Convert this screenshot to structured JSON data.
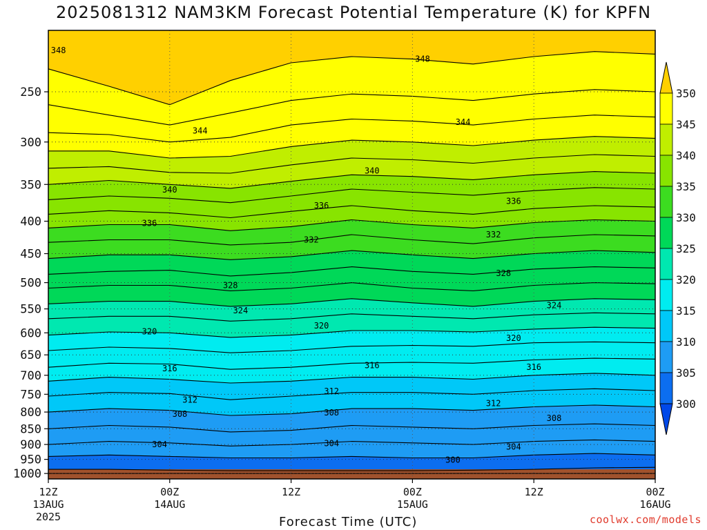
{
  "title": "2025081312 NAM3KM Forecast Potential Temperature (K) for KPFN",
  "credit": "coolwx.com/models",
  "chart_data": {
    "type": "contour",
    "title": "2025081312 NAM3KM Forecast Potential Temperature (K) for KPFN",
    "xlabel": "Forecast Time (UTC)",
    "ylabel": "",
    "x_ticks": [
      {
        "hour": 0,
        "labels": [
          "12Z",
          "13AUG",
          "2025"
        ]
      },
      {
        "hour": 12,
        "labels": [
          "00Z",
          "14AUG"
        ]
      },
      {
        "hour": 24,
        "labels": [
          "12Z"
        ]
      },
      {
        "hour": 36,
        "labels": [
          "00Z",
          "15AUG"
        ]
      },
      {
        "hour": 48,
        "labels": [
          "12Z"
        ]
      },
      {
        "hour": 60,
        "labels": [
          "00Z",
          "16AUG"
        ]
      }
    ],
    "xlim": [
      0,
      60
    ],
    "y_ticks": [
      250,
      300,
      350,
      400,
      450,
      500,
      550,
      600,
      650,
      700,
      750,
      800,
      850,
      900,
      950,
      1000
    ],
    "ylim": [
      1020,
      200
    ],
    "y_scale": "log",
    "colorbar": {
      "ticks": [
        300,
        305,
        310,
        315,
        320,
        325,
        330,
        335,
        340,
        345,
        350
      ],
      "colors": [
        "#0048e8",
        "#0c6ef0",
        "#1e9cf4",
        "#00c8f8",
        "#00ecf0",
        "#00e8b0",
        "#00d858",
        "#3cdc20",
        "#88e400",
        "#c0ee00",
        "#ffff00",
        "#ffd000"
      ]
    },
    "contour_levels_labeled": [
      300,
      304,
      308,
      312,
      316,
      320,
      324,
      328,
      332,
      336,
      340,
      344,
      348
    ],
    "grid": true,
    "series": [
      {
        "theta": 301,
        "p": [
          1000,
          1000,
          1000,
          1000,
          1000,
          1000,
          1000,
          1000,
          1000,
          1000,
          1000
        ]
      },
      {
        "theta": 302,
        "p": [
          985,
          985,
          988,
          990,
          990,
          990,
          990,
          988,
          985,
          980,
          978
        ]
      },
      {
        "theta": 304,
        "p": [
          940,
          935,
          940,
          945,
          945,
          940,
          945,
          945,
          935,
          930,
          935
        ]
      },
      {
        "theta": 306,
        "p": [
          900,
          890,
          895,
          905,
          900,
          890,
          895,
          900,
          890,
          885,
          890
        ]
      },
      {
        "theta": 308,
        "p": [
          850,
          840,
          845,
          860,
          855,
          840,
          845,
          850,
          840,
          835,
          840
        ]
      },
      {
        "theta": 310,
        "p": [
          800,
          790,
          795,
          810,
          805,
          790,
          790,
          795,
          785,
          780,
          785
        ]
      },
      {
        "theta": 312,
        "p": [
          755,
          745,
          748,
          765,
          755,
          745,
          745,
          750,
          740,
          735,
          740
        ]
      },
      {
        "theta": 314,
        "p": [
          715,
          705,
          710,
          720,
          715,
          705,
          705,
          710,
          700,
          695,
          700
        ]
      },
      {
        "theta": 316,
        "p": [
          680,
          670,
          672,
          685,
          680,
          670,
          668,
          670,
          662,
          658,
          660
        ]
      },
      {
        "theta": 318,
        "p": [
          640,
          632,
          635,
          645,
          640,
          630,
          628,
          630,
          622,
          620,
          622
        ]
      },
      {
        "theta": 320,
        "p": [
          605,
          598,
          600,
          610,
          605,
          595,
          595,
          598,
          592,
          588,
          590
        ]
      },
      {
        "theta": 322,
        "p": [
          570,
          565,
          565,
          575,
          570,
          560,
          565,
          570,
          562,
          558,
          560
        ]
      },
      {
        "theta": 324,
        "p": [
          540,
          535,
          535,
          545,
          540,
          530,
          538,
          545,
          535,
          530,
          532
        ]
      },
      {
        "theta": 326,
        "p": [
          510,
          505,
          505,
          515,
          510,
          500,
          510,
          515,
          505,
          500,
          502
        ]
      },
      {
        "theta": 328,
        "p": [
          485,
          480,
          478,
          488,
          482,
          472,
          480,
          485,
          476,
          472,
          474
        ]
      },
      {
        "theta": 330,
        "p": [
          458,
          452,
          452,
          460,
          455,
          445,
          452,
          458,
          450,
          445,
          448
        ]
      },
      {
        "theta": 332,
        "p": [
          432,
          428,
          428,
          436,
          432,
          420,
          428,
          434,
          425,
          420,
          422
        ]
      },
      {
        "theta": 334,
        "p": [
          410,
          405,
          405,
          414,
          408,
          398,
          405,
          410,
          402,
          398,
          400
        ]
      },
      {
        "theta": 336,
        "p": [
          390,
          385,
          388,
          395,
          386,
          378,
          385,
          390,
          382,
          378,
          380
        ]
      },
      {
        "theta": 338,
        "p": [
          370,
          365,
          368,
          374,
          365,
          356,
          360,
          364,
          358,
          354,
          356
        ]
      },
      {
        "theta": 340,
        "p": [
          350,
          345,
          350,
          355,
          346,
          338,
          340,
          344,
          338,
          334,
          336
        ]
      },
      {
        "theta": 342,
        "p": [
          330,
          328,
          335,
          336,
          326,
          318,
          320,
          324,
          318,
          314,
          316
        ]
      },
      {
        "theta": 344,
        "p": [
          310,
          310,
          318,
          316,
          305,
          298,
          300,
          304,
          298,
          294,
          296
        ]
      },
      {
        "theta": 346,
        "p": [
          290,
          292,
          300,
          295,
          282,
          276,
          278,
          282,
          276,
          272,
          274
        ]
      },
      {
        "theta": 348,
        "p": [
          262,
          272,
          282,
          270,
          258,
          252,
          254,
          258,
          252,
          248,
          250
        ]
      },
      {
        "theta": 350,
        "p": [
          230,
          245,
          262,
          240,
          225,
          220,
          222,
          226,
          220,
          216,
          218
        ]
      }
    ],
    "contour_labels": [
      {
        "text": "348",
        "t": 1.0,
        "p": 215
      },
      {
        "text": "348",
        "t": 37.0,
        "p": 222
      },
      {
        "text": "344",
        "t": 15.0,
        "p": 288
      },
      {
        "text": "344",
        "t": 41.0,
        "p": 279
      },
      {
        "text": "340",
        "t": 32.0,
        "p": 333
      },
      {
        "text": "340",
        "t": 12.0,
        "p": 357
      },
      {
        "text": "336",
        "t": 27.0,
        "p": 378
      },
      {
        "text": "336",
        "t": 46.0,
        "p": 372
      },
      {
        "text": "336",
        "t": 10.0,
        "p": 403
      },
      {
        "text": "332",
        "t": 26.0,
        "p": 428
      },
      {
        "text": "332",
        "t": 44.0,
        "p": 420
      },
      {
        "text": "328",
        "t": 18.0,
        "p": 505
      },
      {
        "text": "328",
        "t": 45.0,
        "p": 483
      },
      {
        "text": "324",
        "t": 19.0,
        "p": 553
      },
      {
        "text": "324",
        "t": 50.0,
        "p": 543
      },
      {
        "text": "320",
        "t": 10.0,
        "p": 597
      },
      {
        "text": "320",
        "t": 27.0,
        "p": 585
      },
      {
        "text": "320",
        "t": 46.0,
        "p": 612
      },
      {
        "text": "316",
        "t": 12.0,
        "p": 683
      },
      {
        "text": "316",
        "t": 32.0,
        "p": 675
      },
      {
        "text": "316",
        "t": 48.0,
        "p": 680
      },
      {
        "text": "312",
        "t": 14.0,
        "p": 766
      },
      {
        "text": "312",
        "t": 28.0,
        "p": 742
      },
      {
        "text": "312",
        "t": 44.0,
        "p": 775
      },
      {
        "text": "308",
        "t": 13.0,
        "p": 806
      },
      {
        "text": "308",
        "t": 28.0,
        "p": 802
      },
      {
        "text": "308",
        "t": 50.0,
        "p": 818
      },
      {
        "text": "304",
        "t": 11.0,
        "p": 900
      },
      {
        "text": "304",
        "t": 28.0,
        "p": 897
      },
      {
        "text": "304",
        "t": 46.0,
        "p": 908
      },
      {
        "text": "300",
        "t": 40.0,
        "p": 952
      }
    ]
  }
}
